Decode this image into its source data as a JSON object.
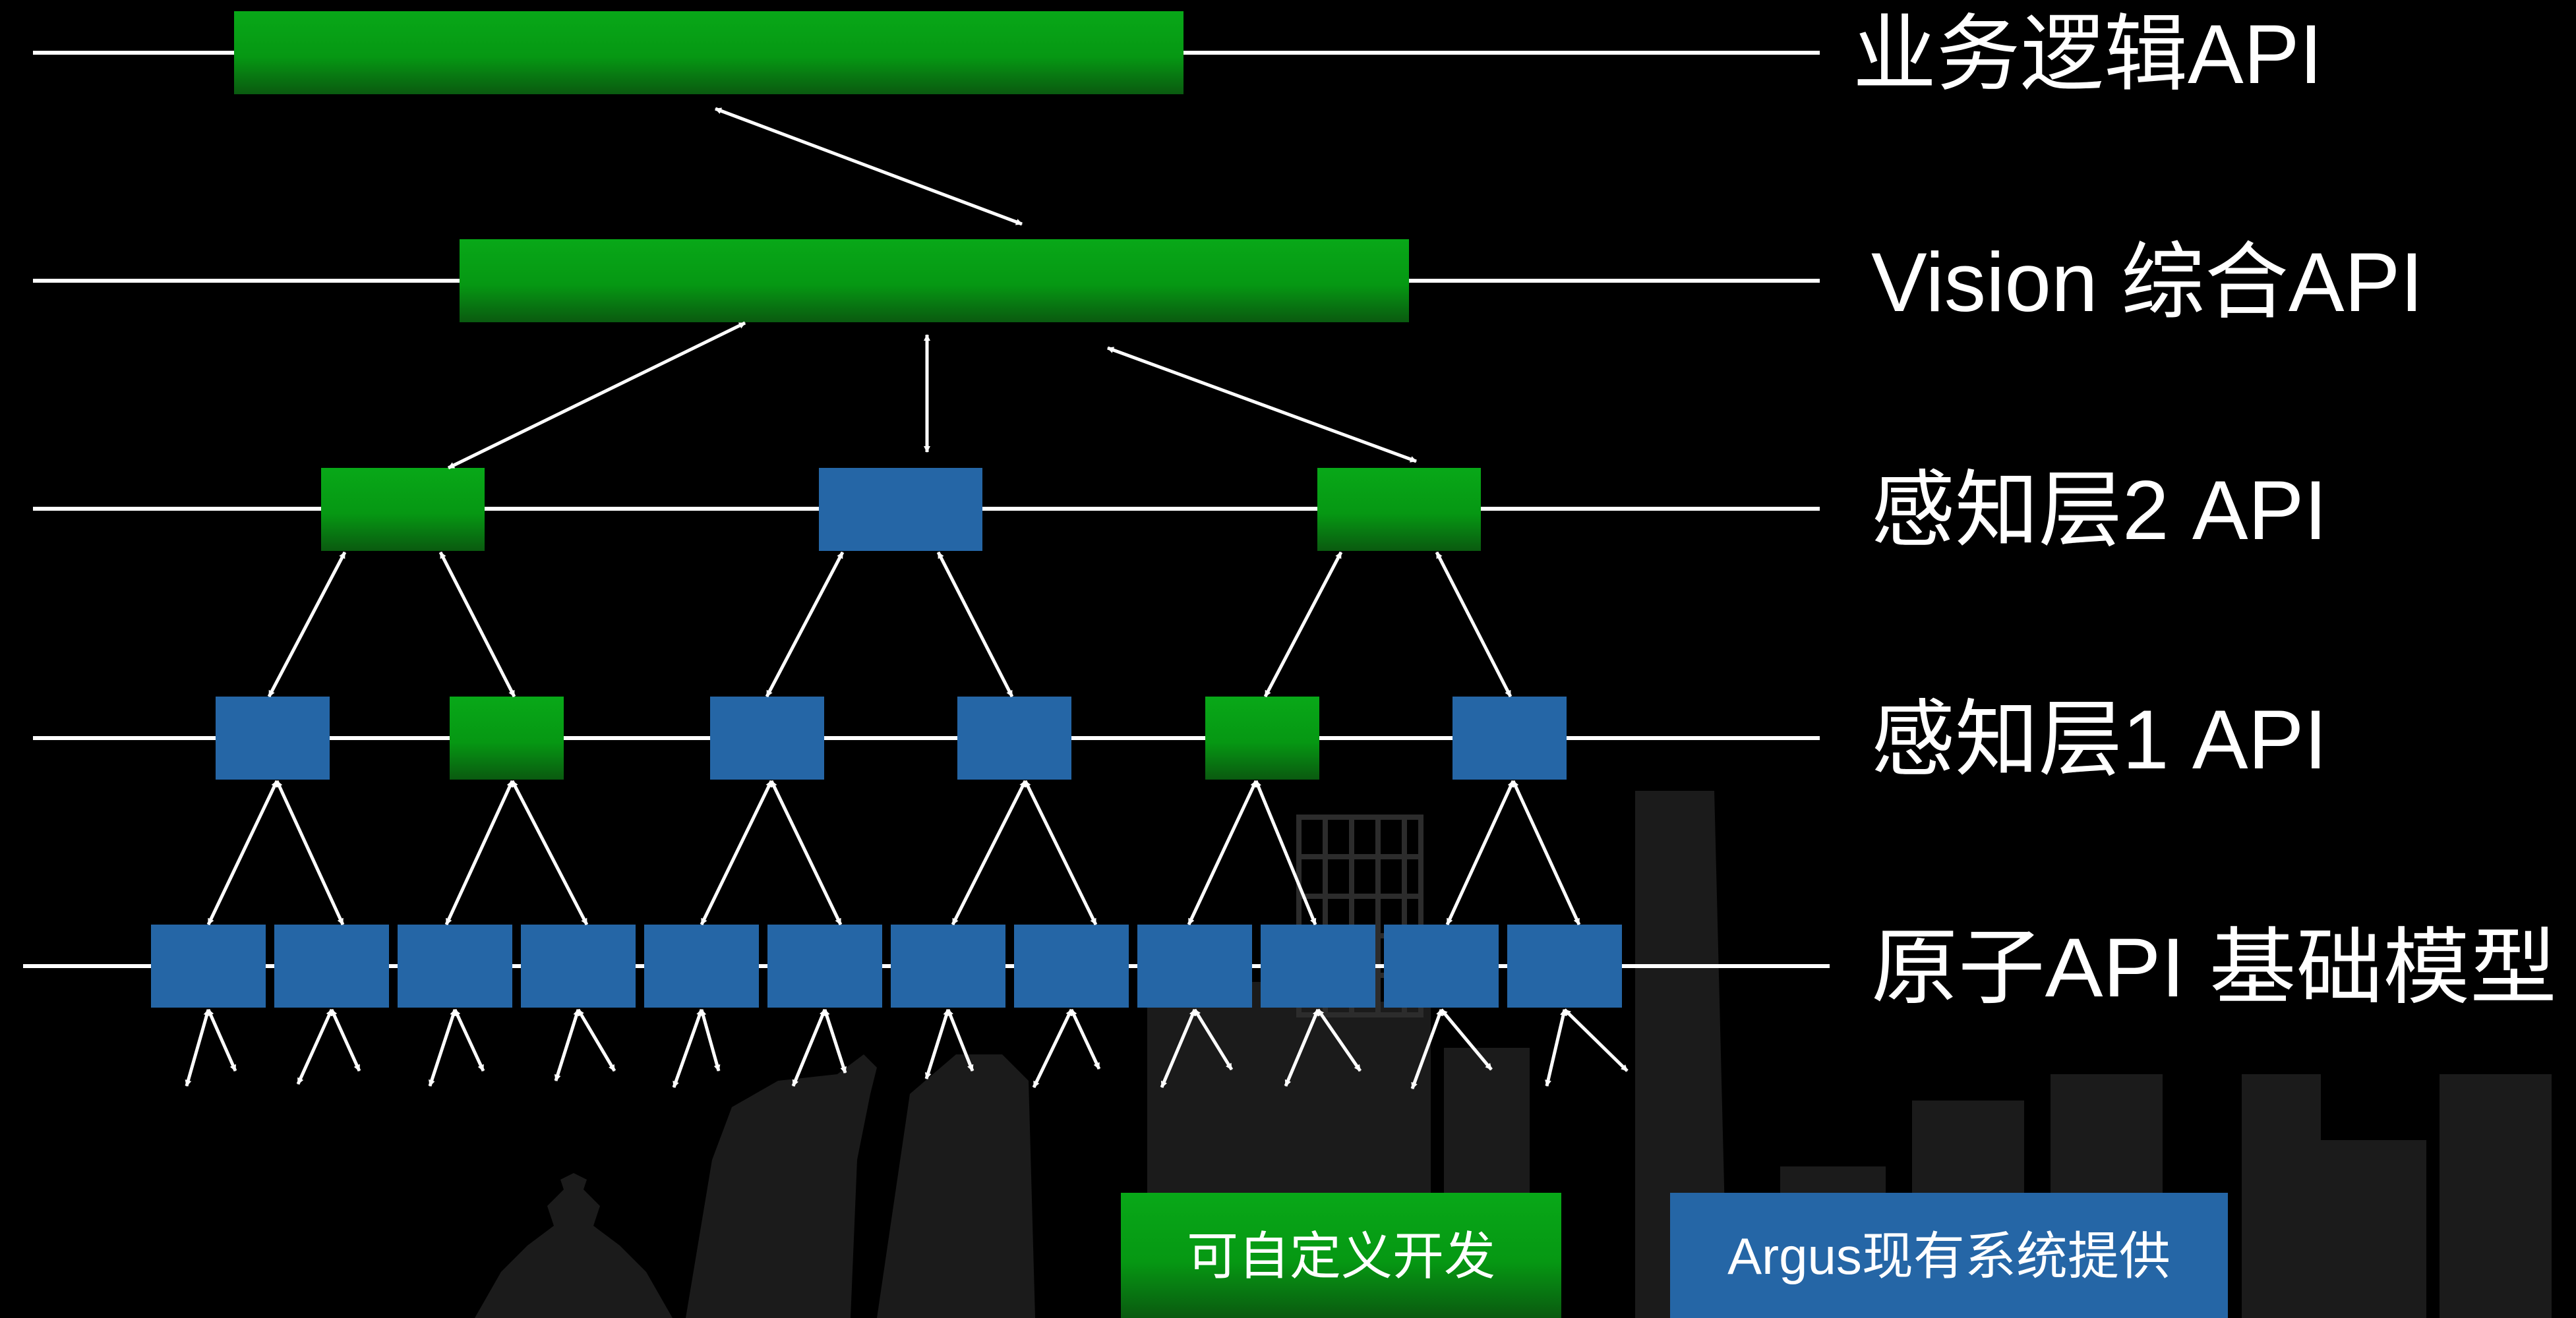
{
  "colors": {
    "background": "#000000",
    "custom": "#06a014",
    "existing": "#2566a6",
    "line": "#ffffff",
    "skyline": "#1b1b1b"
  },
  "layers": [
    {
      "id": "business",
      "label": "业务逻辑API"
    },
    {
      "id": "vision",
      "label": "Vision 综合API"
    },
    {
      "id": "perception2",
      "label": "感知层2 API"
    },
    {
      "id": "perception1",
      "label": "感知层1 API"
    },
    {
      "id": "atomic",
      "label": "原子API 基础模型"
    }
  ],
  "legend": {
    "custom_label": "可自定义开发",
    "existing_label": "Argus现有系统提供"
  }
}
